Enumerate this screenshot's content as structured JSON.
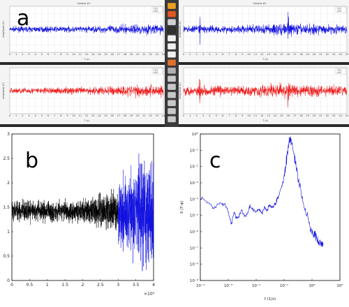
{
  "panel_letters": {
    "a": "a",
    "b": "b",
    "c": "c"
  },
  "colors": {
    "blue": "#1010e0",
    "red": "#ee1a1a",
    "black": "#000000",
    "grid": "#d8d8d8"
  },
  "taskbar": {
    "icons": [
      "browser-icon",
      "firefox-icon",
      "files-icon",
      "terminal-icon",
      "document-icon",
      "document-icon",
      "document-icon",
      "matlab-icon",
      "settings-icon",
      "window-icon",
      "window-icon",
      "window-icon",
      "window-icon",
      "window-icon",
      "window-icon"
    ]
  },
  "chart_data": [
    {
      "id": "a-top-left",
      "type": "line",
      "title": "Sample #1",
      "legend": [
        "ch1",
        "ch2"
      ],
      "legend_placement": "top-right",
      "series": [
        {
          "name": "ch1",
          "color": "#1010e0"
        }
      ],
      "xlim": [
        0,
        24
      ],
      "xticks": [
        0,
        1,
        2,
        3,
        4,
        5,
        6,
        7,
        8,
        9,
        10,
        11,
        12,
        13,
        14,
        15,
        16,
        17,
        18,
        19,
        20,
        21,
        22,
        23,
        24
      ],
      "xlabel": "T (s)",
      "ylabel": "Amplitude (V)",
      "envelope": {
        "x": [
          0,
          12,
          18,
          24
        ],
        "amp": [
          0.18,
          0.22,
          0.32,
          0.38
        ]
      },
      "grid": true
    },
    {
      "id": "a-bottom-left",
      "type": "line",
      "title": "",
      "legend": [
        "ch1",
        "ch2"
      ],
      "legend_placement": "top-right",
      "series": [
        {
          "name": "ch2",
          "color": "#ee1a1a"
        }
      ],
      "xlim": [
        0,
        24
      ],
      "xticks": [
        0,
        1,
        2,
        3,
        4,
        5,
        6,
        7,
        8,
        9,
        10,
        11,
        12,
        13,
        14,
        15,
        16,
        17,
        18,
        19,
        20,
        21,
        22,
        23,
        24
      ],
      "xlabel": "T (s)",
      "ylabel": "Amplitude (V)",
      "envelope": {
        "x": [
          0,
          12,
          18,
          24
        ],
        "amp": [
          0.2,
          0.26,
          0.4,
          0.46
        ]
      },
      "grid": true
    },
    {
      "id": "a-top-right",
      "type": "line",
      "title": "Sample #2",
      "legend": [
        "ch1",
        "ch2"
      ],
      "legend_placement": "top-right",
      "series": [
        {
          "name": "ch1",
          "color": "#1010e0"
        }
      ],
      "xlim": [
        0,
        25
      ],
      "xticks": [
        0,
        1,
        2,
        3,
        4,
        5,
        6,
        7,
        8,
        9,
        10,
        11,
        12,
        13,
        14,
        15,
        16,
        17,
        18,
        19,
        20,
        21,
        22,
        23,
        24,
        25
      ],
      "xlabel": "T (s)",
      "ylabel": "Amplitude (V)",
      "spikes_x": [
        2.5,
        16
      ],
      "envelope": {
        "x": [
          0,
          10,
          14,
          25
        ],
        "amp": [
          0.25,
          0.3,
          0.45,
          0.3
        ]
      },
      "grid": true
    },
    {
      "id": "a-bottom-right",
      "type": "line",
      "title": "",
      "legend": [
        "ch1",
        "ch2"
      ],
      "legend_placement": "top-right",
      "series": [
        {
          "name": "ch2",
          "color": "#ee1a1a"
        }
      ],
      "xlim": [
        0,
        25
      ],
      "xticks": [
        0,
        1,
        2,
        3,
        4,
        5,
        6,
        7,
        8,
        9,
        10,
        11,
        12,
        13,
        14,
        15,
        16,
        17,
        18,
        19,
        20,
        21,
        22,
        23,
        24,
        25
      ],
      "xlabel": "T (s)",
      "ylabel": "Amplitude (V)",
      "spikes_x": [
        2.5,
        16
      ],
      "envelope": {
        "x": [
          0,
          10,
          14,
          25
        ],
        "amp": [
          0.35,
          0.4,
          0.5,
          0.35
        ]
      },
      "grid": true
    },
    {
      "id": "b",
      "type": "line",
      "xlim": [
        0,
        40000
      ],
      "ylim": [
        0,
        3
      ],
      "xticks": [
        0,
        5000,
        10000,
        15000,
        20000,
        25000,
        30000,
        35000,
        40000
      ],
      "xtick_labels": [
        "0",
        "0.5",
        "1",
        "1.5",
        "2",
        "2.5",
        "3",
        "3.5",
        "4"
      ],
      "x_multiplier": "×10⁴",
      "yticks": [
        0,
        0.5,
        1,
        1.5,
        2,
        2.5,
        3
      ],
      "ytick_labels": [
        "0",
        "0.5",
        "1",
        "1.5",
        "2",
        "2.5",
        "3"
      ],
      "mean": 1.42,
      "series": [
        {
          "color": "#000000",
          "x_range": [
            0,
            30000
          ],
          "envelope": {
            "x": [
              0,
              20000,
              27000,
              30000
            ],
            "amp": [
              0.2,
              0.22,
              0.38,
              0.45
            ]
          }
        },
        {
          "color": "#1010e0",
          "x_range": [
            30000,
            40000
          ],
          "envelope": {
            "x": [
              30000,
              35000,
              37000,
              40000
            ],
            "amp": [
              0.6,
              0.9,
              1.2,
              1.1
            ]
          }
        }
      ],
      "grid": false
    },
    {
      "id": "c",
      "type": "line",
      "scale": "loglog",
      "xlim": [
        0.0001,
        10
      ],
      "ylim": [
        1e-09,
        1
      ],
      "xticks": [
        0.0001,
        0.001,
        0.01,
        0.1,
        1,
        10
      ],
      "xtick_labels": [
        "10⁻⁴",
        "10⁻³",
        "10⁻²",
        "10⁻¹",
        "10⁰",
        "10¹"
      ],
      "yticks": [
        1e-09,
        1e-08,
        1e-07,
        1e-06,
        1e-05,
        0.0001,
        0.001,
        0.01,
        0.1,
        1
      ],
      "ytick_labels": [
        "10⁻⁹",
        "10⁻⁸",
        "10⁻⁷",
        "10⁻⁶",
        "10⁻⁵",
        "10⁻⁴",
        "10⁻³",
        "10⁻²",
        "10⁻¹",
        "10⁰"
      ],
      "xlabel": "f (1/s)",
      "ylabel": "S (T·φ)",
      "series": [
        {
          "color": "#1010e0",
          "points": [
            [
              0.0001,
              0.00012
            ],
            [
              0.0002,
              6e-05
            ],
            [
              0.0003,
              2.5e-05
            ],
            [
              0.0005,
              6e-05
            ],
            [
              0.0008,
              4e-05
            ],
            [
              0.001,
              1.8e-05
            ],
            [
              0.0013,
              3e-06
            ],
            [
              0.0016,
              1.5e-05
            ],
            [
              0.002,
              6e-06
            ],
            [
              0.0025,
              1e-05
            ],
            [
              0.003,
              2e-05
            ],
            [
              0.004,
              8e-06
            ],
            [
              0.005,
              1.5e-05
            ],
            [
              0.006,
              4e-05
            ],
            [
              0.008,
              2e-05
            ],
            [
              0.01,
              1.6e-05
            ],
            [
              0.013,
              2.5e-05
            ],
            [
              0.016,
              1.4e-05
            ],
            [
              0.02,
              3e-05
            ],
            [
              0.025,
              2e-05
            ],
            [
              0.03,
              4e-05
            ],
            [
              0.04,
              3e-05
            ],
            [
              0.05,
              6e-05
            ],
            [
              0.06,
              0.00012
            ],
            [
              0.08,
              0.0005
            ],
            [
              0.1,
              0.002
            ],
            [
              0.12,
              0.02
            ],
            [
              0.15,
              0.3
            ],
            [
              0.17,
              0.5
            ],
            [
              0.2,
              0.15
            ],
            [
              0.25,
              0.02
            ],
            [
              0.3,
              0.003
            ],
            [
              0.4,
              0.0003
            ],
            [
              0.6,
              2e-05
            ],
            [
              0.8,
              3e-06
            ],
            [
              1,
              1e-06
            ],
            [
              1.3,
              5e-07
            ],
            [
              1.6,
              3e-07
            ],
            [
              2,
              2e-07
            ],
            [
              2.5,
              2e-07
            ]
          ]
        }
      ],
      "grid": false
    }
  ]
}
